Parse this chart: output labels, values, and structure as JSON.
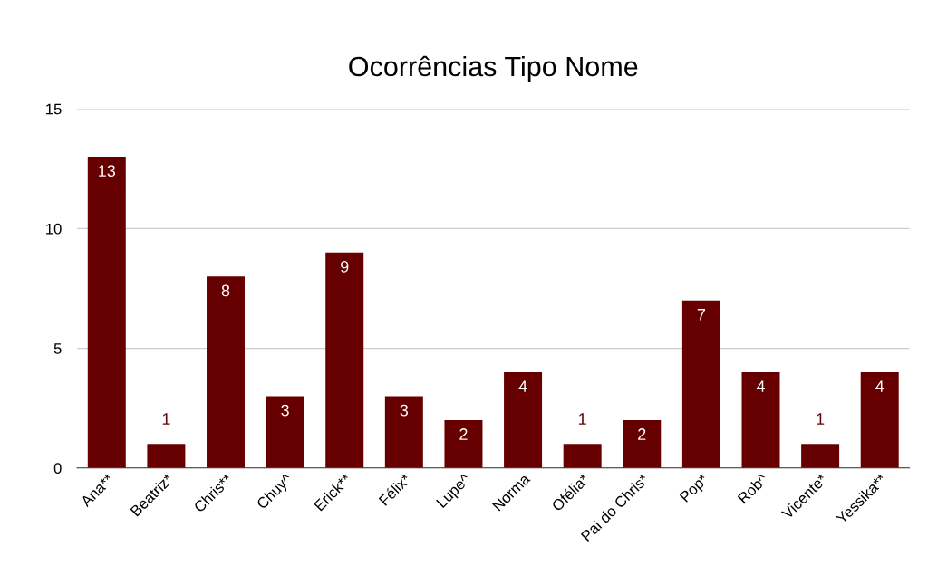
{
  "chart_data": {
    "type": "bar",
    "title": "Ocorrências Tipo Nome",
    "categories": [
      "Ana**",
      "Beatriz*",
      "Chris**",
      "Chuy^",
      "Erick**",
      "Félix*",
      "Lupe^",
      "Norma",
      "Ofélia*",
      "Pai do Chris*",
      "Pop*",
      "Rob^",
      "Vicente*",
      "Yessika**"
    ],
    "values": [
      13,
      1,
      8,
      3,
      9,
      3,
      2,
      4,
      1,
      2,
      7,
      4,
      1,
      4
    ],
    "color": "#660000",
    "ylim": [
      0,
      15
    ],
    "yticks": [
      0,
      5,
      10,
      15
    ],
    "grid": "y",
    "data_labels": true
  }
}
